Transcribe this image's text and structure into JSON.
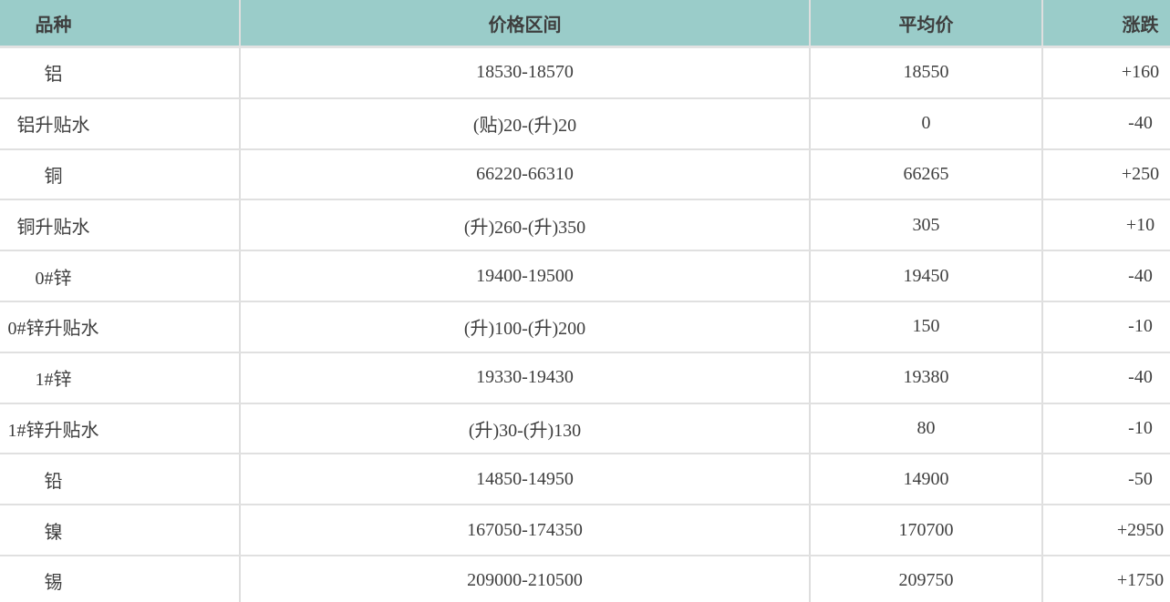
{
  "table": {
    "colors": {
      "header_bg": "#9accc9",
      "row_border": "#e0e0e0",
      "column_divider": "#dedede",
      "text": "#3e3e3e"
    },
    "columns": [
      {
        "key": "variety",
        "label": "品种"
      },
      {
        "key": "price_range",
        "label": "价格区间"
      },
      {
        "key": "average_price",
        "label": "平均价"
      },
      {
        "key": "change",
        "label": "涨跌"
      }
    ],
    "rows": [
      {
        "variety": "铝",
        "price_range": "18530-18570",
        "average_price": "18550",
        "change": "+160"
      },
      {
        "variety": "铝升贴水",
        "price_range": "(贴)20-(升)20",
        "average_price": "0",
        "change": "-40"
      },
      {
        "variety": "铜",
        "price_range": "66220-66310",
        "average_price": "66265",
        "change": "+250"
      },
      {
        "variety": "铜升贴水",
        "price_range": "(升)260-(升)350",
        "average_price": "305",
        "change": "+10"
      },
      {
        "variety": "0#锌",
        "price_range": "19400-19500",
        "average_price": "19450",
        "change": "-40"
      },
      {
        "variety": "0#锌升贴水",
        "price_range": "(升)100-(升)200",
        "average_price": "150",
        "change": "-10"
      },
      {
        "variety": "1#锌",
        "price_range": "19330-19430",
        "average_price": "19380",
        "change": "-40"
      },
      {
        "variety": "1#锌升贴水",
        "price_range": "(升)30-(升)130",
        "average_price": "80",
        "change": "-10"
      },
      {
        "variety": "铅",
        "price_range": "14850-14950",
        "average_price": "14900",
        "change": "-50"
      },
      {
        "variety": "镍",
        "price_range": "167050-174350",
        "average_price": "170700",
        "change": "+2950"
      },
      {
        "variety": "锡",
        "price_range": "209000-210500",
        "average_price": "209750",
        "change": "+1750"
      }
    ]
  }
}
